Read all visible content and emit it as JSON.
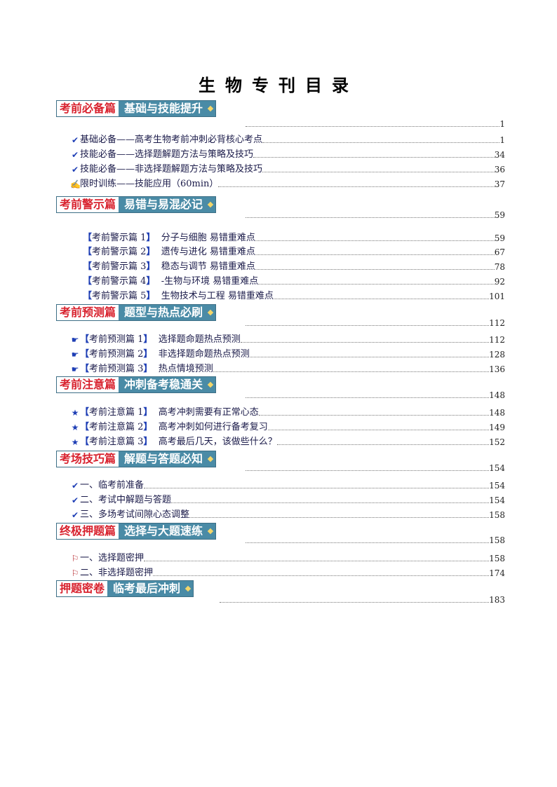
{
  "title": "生物专刊目录",
  "sections": [
    {
      "tag": "考前必备篇",
      "subtitle": "基础与技能提升",
      "page": "1",
      "items": [
        {
          "icon": "check",
          "text": "基础必备——高考生物考前冲刺必背核心考点",
          "page": "1"
        },
        {
          "icon": "check",
          "text": "技能必备——选择题解题方法与策略及技巧",
          "page": "34"
        },
        {
          "icon": "check",
          "text": "技能必备——非选择题解题方法与策略及技巧",
          "page": "36"
        },
        {
          "icon": "pencil",
          "text": "限时训练——技能应用（60min）",
          "page": "37"
        }
      ]
    },
    {
      "tag": "考前警示篇",
      "subtitle": "易错与易混必记",
      "page": "59",
      "items": [
        {
          "label": "考前警示篇 1",
          "text": "分子与细胞  易错重难点",
          "page": "59"
        },
        {
          "label": "考前警示篇 2",
          "text": "遗传与进化  易错重难点",
          "page": "67"
        },
        {
          "label": "考前警示篇 3",
          "text": "稳态与调节  易错重难点",
          "page": "78"
        },
        {
          "label": "考前警示篇 4",
          "text": "-生物与环境  易错重难点",
          "page": "92"
        },
        {
          "label": "考前警示篇 5",
          "text": "生物技术与工程  易错重难点",
          "page": "101"
        }
      ]
    },
    {
      "tag": "考前预测篇",
      "subtitle": "题型与热点必刷",
      "page": "112",
      "items": [
        {
          "icon": "pointing-hand",
          "label": "考前预测篇 1",
          "text": "选择题命题热点预测",
          "page": "112"
        },
        {
          "icon": "pointing-hand",
          "label": "考前预测篇 2",
          "text": "非选择题命题热点预测",
          "page": "128"
        },
        {
          "icon": "pointing-hand",
          "label": "考前预测篇 3",
          "text": "热点情境预测",
          "page": "136"
        }
      ]
    },
    {
      "tag": "考前注意篇",
      "subtitle": "冲刺备考稳通关",
      "page": "148",
      "items": [
        {
          "icon": "star",
          "label": "考前注意篇 1",
          "text": "高考冲刺需要有正常心态",
          "page": "148"
        },
        {
          "icon": "star",
          "label": "考前注意篇 2",
          "text": "高考冲刺如何进行备考复习",
          "page": "149"
        },
        {
          "icon": "star",
          "label": "考前注意篇 3",
          "text": "高考最后几天，该做些什么？",
          "page": "152"
        }
      ]
    },
    {
      "tag": "考场技巧篇",
      "subtitle": "解题与答题必知",
      "page": "154",
      "items": [
        {
          "icon": "check",
          "text": "一、临考前准备",
          "page": "154"
        },
        {
          "icon": "check",
          "text": "二、考试中解题与答题",
          "page": "154"
        },
        {
          "icon": "check",
          "text": "三、多场考试间隙心态调整",
          "page": "158"
        }
      ]
    },
    {
      "tag": "终极押题篇",
      "subtitle": "选择与大题速练",
      "page": "158",
      "items": [
        {
          "icon": "flag",
          "text": "一、选择题密押",
          "page": "158"
        },
        {
          "icon": "flag",
          "text": "二、非选择题密押",
          "page": "174"
        }
      ]
    },
    {
      "tag": "押题密卷",
      "subtitle": "临考最后冲刺",
      "page": "183",
      "items": []
    }
  ]
}
